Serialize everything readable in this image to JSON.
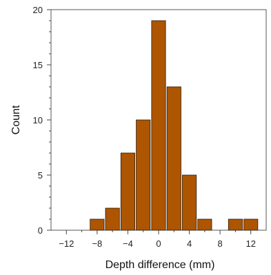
{
  "chart_data": {
    "type": "bar",
    "title": "",
    "xlabel": "Depth difference (mm)",
    "ylabel": "Count",
    "bin_edges": [
      -9,
      -7,
      -5,
      -3,
      -1,
      1,
      3,
      5,
      7,
      9,
      11,
      13
    ],
    "values": [
      1,
      2,
      7,
      10,
      19,
      13,
      5,
      1,
      0,
      1,
      1
    ],
    "xlim": [
      -14,
      14
    ],
    "ylim": [
      0,
      20
    ],
    "xticks": [
      -12,
      -8,
      -4,
      0,
      4,
      8,
      12
    ],
    "xtick_labels": [
      "−12",
      "−8",
      "−4",
      "0",
      "4",
      "8",
      "12"
    ],
    "yticks": [
      0,
      5,
      10,
      15,
      20
    ],
    "ytick_labels": [
      "0",
      "5",
      "10",
      "15",
      "20"
    ],
    "grid": false,
    "colors": {
      "bar_fill": "#ad5500",
      "bar_edge": "#2a1a0a",
      "axis": "#444444"
    }
  }
}
